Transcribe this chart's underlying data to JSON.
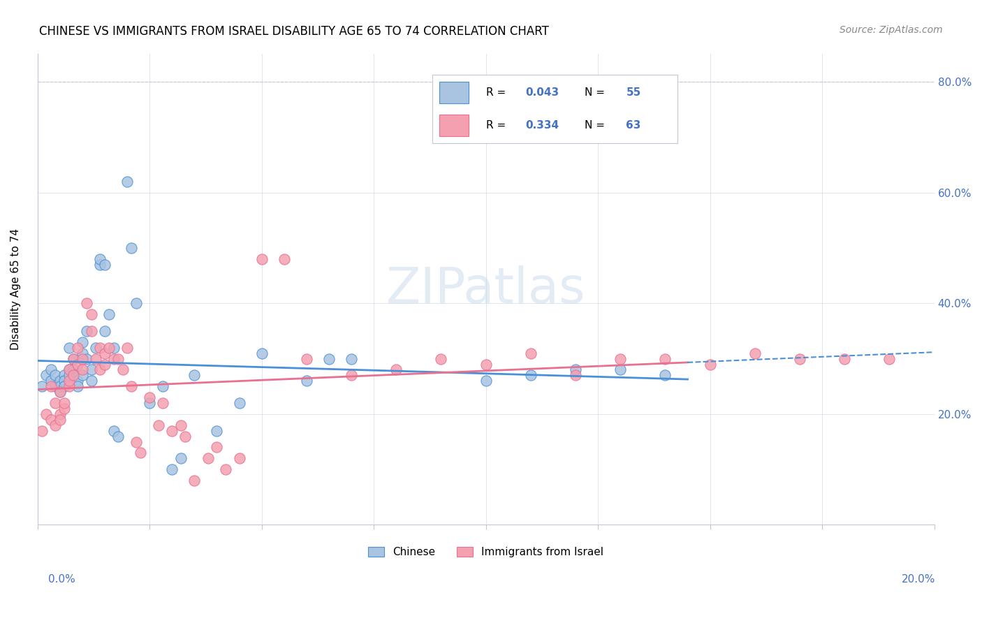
{
  "title": "CHINESE VS IMMIGRANTS FROM ISRAEL DISABILITY AGE 65 TO 74 CORRELATION CHART",
  "source": "Source: ZipAtlas.com",
  "ylabel": "Disability Age 65 to 74",
  "yticks": [
    "20.0%",
    "40.0%",
    "60.0%",
    "80.0%"
  ],
  "ytick_vals": [
    0.2,
    0.4,
    0.6,
    0.8
  ],
  "xlim": [
    0.0,
    0.2
  ],
  "ylim": [
    0.0,
    0.85
  ],
  "color_blue": "#a8c4e0",
  "color_pink": "#f4a0b0",
  "line_blue": "#4a90d9",
  "line_pink": "#e87090",
  "watermark": "ZIPatlas",
  "chinese_x": [
    0.001,
    0.002,
    0.003,
    0.003,
    0.004,
    0.004,
    0.005,
    0.005,
    0.005,
    0.006,
    0.006,
    0.006,
    0.007,
    0.007,
    0.007,
    0.008,
    0.008,
    0.008,
    0.009,
    0.009,
    0.01,
    0.01,
    0.01,
    0.011,
    0.011,
    0.012,
    0.012,
    0.013,
    0.014,
    0.014,
    0.015,
    0.015,
    0.016,
    0.017,
    0.017,
    0.018,
    0.02,
    0.021,
    0.022,
    0.025,
    0.028,
    0.03,
    0.032,
    0.035,
    0.04,
    0.045,
    0.05,
    0.06,
    0.065,
    0.07,
    0.1,
    0.11,
    0.12,
    0.13,
    0.14
  ],
  "chinese_y": [
    0.25,
    0.27,
    0.28,
    0.26,
    0.25,
    0.27,
    0.26,
    0.25,
    0.24,
    0.27,
    0.26,
    0.25,
    0.28,
    0.27,
    0.32,
    0.3,
    0.28,
    0.27,
    0.26,
    0.25,
    0.33,
    0.31,
    0.27,
    0.35,
    0.3,
    0.28,
    0.26,
    0.32,
    0.47,
    0.48,
    0.47,
    0.35,
    0.38,
    0.32,
    0.17,
    0.16,
    0.62,
    0.5,
    0.4,
    0.22,
    0.25,
    0.1,
    0.12,
    0.27,
    0.17,
    0.22,
    0.31,
    0.26,
    0.3,
    0.3,
    0.26,
    0.27,
    0.28,
    0.28,
    0.27
  ],
  "israel_x": [
    0.001,
    0.002,
    0.003,
    0.003,
    0.004,
    0.004,
    0.005,
    0.005,
    0.005,
    0.006,
    0.006,
    0.007,
    0.007,
    0.007,
    0.008,
    0.008,
    0.009,
    0.009,
    0.01,
    0.01,
    0.011,
    0.012,
    0.012,
    0.013,
    0.014,
    0.014,
    0.015,
    0.015,
    0.016,
    0.017,
    0.018,
    0.019,
    0.02,
    0.021,
    0.022,
    0.023,
    0.025,
    0.027,
    0.028,
    0.03,
    0.032,
    0.033,
    0.035,
    0.038,
    0.04,
    0.042,
    0.045,
    0.05,
    0.055,
    0.06,
    0.07,
    0.08,
    0.09,
    0.1,
    0.11,
    0.12,
    0.13,
    0.14,
    0.15,
    0.16,
    0.17,
    0.18,
    0.19
  ],
  "israel_y": [
    0.17,
    0.2,
    0.19,
    0.25,
    0.18,
    0.22,
    0.24,
    0.2,
    0.19,
    0.21,
    0.22,
    0.25,
    0.28,
    0.26,
    0.27,
    0.3,
    0.32,
    0.29,
    0.28,
    0.3,
    0.4,
    0.38,
    0.35,
    0.3,
    0.32,
    0.28,
    0.31,
    0.29,
    0.32,
    0.3,
    0.3,
    0.28,
    0.32,
    0.25,
    0.15,
    0.13,
    0.23,
    0.18,
    0.22,
    0.17,
    0.18,
    0.16,
    0.08,
    0.12,
    0.14,
    0.1,
    0.12,
    0.48,
    0.48,
    0.3,
    0.27,
    0.28,
    0.3,
    0.29,
    0.31,
    0.27,
    0.3,
    0.3,
    0.29,
    0.31,
    0.3,
    0.3,
    0.3
  ]
}
